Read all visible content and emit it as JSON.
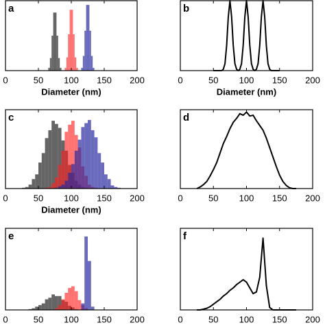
{
  "chart_data": [
    {
      "type": "histogram",
      "label": "a",
      "xlabel": "Diameter (nm)",
      "xlim": [
        0,
        200
      ],
      "xticks": [
        0,
        50,
        100,
        150,
        200
      ],
      "ylim": [
        0,
        100
      ],
      "bins": [
        60,
        62.5,
        65,
        67.5,
        70,
        72.5,
        75,
        77.5,
        80,
        82.5,
        85,
        87.5,
        90,
        92.5,
        95,
        97.5,
        100,
        102.5,
        105,
        107.5,
        110,
        112.5,
        115,
        117.5,
        120,
        122.5,
        125,
        127.5,
        130,
        132.5,
        135,
        137.5,
        140
      ],
      "series": [
        {
          "color": "#505050e0",
          "values": [
            0,
            0,
            4,
            18,
            50,
            83,
            83,
            50,
            18,
            4,
            0,
            0,
            0,
            0,
            0,
            0,
            0,
            0,
            0,
            0,
            0,
            0,
            0,
            0,
            0,
            0,
            0,
            0,
            0,
            0,
            0,
            0
          ]
        },
        {
          "color": "#ff2020a0",
          "values": [
            0,
            0,
            0,
            0,
            0,
            0,
            0,
            0,
            0,
            0,
            0,
            0,
            4,
            19,
            52,
            87,
            87,
            52,
            19,
            4,
            0,
            0,
            0,
            0,
            0,
            0,
            0,
            0,
            0,
            0,
            0,
            0
          ]
        },
        {
          "color": "#2828a0b0",
          "values": [
            0,
            0,
            0,
            0,
            0,
            0,
            0,
            0,
            0,
            0,
            0,
            0,
            0,
            0,
            0,
            0,
            0,
            0,
            0,
            0,
            0,
            0,
            4,
            21,
            57,
            94,
            94,
            57,
            21,
            4,
            0,
            0
          ]
        }
      ]
    },
    {
      "type": "line",
      "label": "b",
      "xlabel": "Diameter (nm)",
      "xlim": [
        0,
        200
      ],
      "xticks": [
        0,
        50,
        100,
        150,
        200
      ],
      "ylim": [
        0,
        100
      ],
      "x": [
        50,
        52.5,
        55,
        57.5,
        60,
        62.5,
        65,
        67.5,
        70,
        72.5,
        75,
        77.5,
        80,
        82.5,
        85,
        87.5,
        90,
        92.5,
        95,
        97.5,
        100,
        102.5,
        105,
        107.5,
        110,
        112.5,
        115,
        117.5,
        120,
        122.5,
        125,
        127.5,
        130,
        132.5,
        135,
        137.5,
        140,
        142.5,
        145,
        147.5,
        150
      ],
      "series": [
        {
          "color": "#000000",
          "values": [
            0,
            0,
            0,
            0,
            0,
            0,
            2,
            10,
            36,
            77,
            100,
            77,
            36,
            10,
            2,
            0,
            2,
            10,
            36,
            77,
            100,
            77,
            36,
            10,
            2,
            0,
            2,
            10,
            36,
            77,
            100,
            77,
            36,
            10,
            2,
            0,
            0,
            0,
            0,
            0,
            0
          ]
        }
      ]
    },
    {
      "type": "histogram",
      "label": "c",
      "xlabel": "Diameter (nm)",
      "xlim": [
        0,
        200
      ],
      "xticks": [
        0,
        50,
        100,
        150,
        200
      ],
      "ylim": [
        0,
        100
      ],
      "bins": [
        25,
        30,
        35,
        40,
        45,
        50,
        55,
        60,
        65,
        70,
        75,
        80,
        85,
        90,
        95,
        100,
        105,
        110,
        115,
        120,
        125,
        130,
        135,
        140,
        145,
        150,
        155,
        160,
        165,
        170,
        175,
        180
      ],
      "series": [
        {
          "color": "#505050e0",
          "values": [
            1,
            2,
            5,
            12,
            18,
            33,
            45,
            64,
            74,
            86,
            82,
            77,
            61,
            48,
            30,
            20,
            10,
            5,
            2,
            1,
            0,
            0,
            0,
            0,
            0,
            0,
            0,
            0,
            0,
            0,
            0
          ]
        },
        {
          "color": "#ff2020a0",
          "values": [
            0,
            0,
            0,
            0,
            0,
            0,
            0,
            1,
            2,
            7,
            14,
            30,
            48,
            72,
            81,
            86,
            68,
            52,
            28,
            16,
            5,
            2,
            1,
            0,
            0,
            0,
            0,
            0,
            0,
            0,
            0
          ]
        },
        {
          "color": "#2828a0b0",
          "values": [
            0,
            0,
            0,
            0,
            0,
            0,
            0,
            0,
            0,
            0,
            1,
            3,
            5,
            10,
            20,
            31,
            48,
            62,
            78,
            83,
            87,
            74,
            65,
            45,
            33,
            18,
            12,
            4,
            2,
            1,
            0
          ]
        }
      ]
    },
    {
      "type": "line",
      "label": "d",
      "xlim": [
        0,
        200
      ],
      "xticks": [
        0,
        50,
        100,
        150,
        200
      ],
      "ylim": [
        0,
        100
      ],
      "x": [
        25,
        30,
        35,
        40,
        45,
        50,
        55,
        60,
        65,
        70,
        75,
        80,
        85,
        90,
        95,
        100,
        105,
        110,
        115,
        120,
        125,
        130,
        135,
        140,
        145,
        150,
        155,
        160,
        165,
        170,
        175
      ],
      "series": [
        {
          "color": "#000000",
          "values": [
            0,
            2,
            5,
            9,
            16,
            24,
            33,
            45,
            57,
            66,
            76,
            84,
            89,
            95,
            93,
            97,
            92,
            93,
            86,
            80,
            74,
            64,
            52,
            40,
            28,
            17,
            9,
            4,
            1,
            0,
            0
          ]
        }
      ]
    },
    {
      "type": "histogram",
      "label": "e",
      "xlim": [
        0,
        200
      ],
      "xticks": [
        0,
        50,
        100,
        150,
        200
      ],
      "ylim": [
        0,
        100
      ],
      "bins": [
        25,
        30,
        35,
        40,
        45,
        50,
        55,
        60,
        65,
        70,
        75,
        80,
        85,
        90,
        95,
        100,
        105,
        110,
        115,
        120,
        125,
        130,
        135,
        140,
        145,
        150,
        155,
        160,
        165,
        170,
        175,
        180
      ],
      "series": [
        {
          "color": "#505050e0",
          "values": [
            0,
            0,
            1,
            2,
            4,
            6,
            8,
            13,
            15,
            19,
            17,
            17,
            12,
            10,
            5,
            3,
            1,
            0,
            0,
            0,
            0,
            0,
            0,
            0,
            0,
            0,
            0,
            0,
            0,
            0,
            0
          ]
        },
        {
          "color": "#ff2020a0",
          "values": [
            0,
            0,
            0,
            0,
            0,
            0,
            0,
            0,
            0,
            0,
            2,
            6,
            13,
            21,
            27,
            29,
            23,
            12,
            6,
            2,
            0,
            0,
            0,
            0,
            0,
            0,
            0,
            0,
            0,
            0,
            0
          ]
        },
        {
          "color": "#2828a0b0",
          "values": [
            0,
            0,
            0,
            0,
            0,
            0,
            0,
            0,
            0,
            0,
            0,
            0,
            0,
            0,
            0,
            0,
            0,
            0,
            8,
            90,
            60,
            4,
            0,
            0,
            0,
            0,
            0,
            0,
            0,
            0,
            0
          ]
        }
      ]
    },
    {
      "type": "line",
      "label": "f",
      "xlim": [
        0,
        200
      ],
      "xticks": [
        0,
        50,
        100,
        150,
        200
      ],
      "ylim": [
        0,
        100
      ],
      "x": [
        25,
        30,
        35,
        40,
        45,
        50,
        55,
        60,
        65,
        70,
        75,
        80,
        85,
        90,
        95,
        100,
        105,
        110,
        115,
        120,
        125,
        130,
        135,
        140,
        145,
        150,
        155,
        160,
        165,
        170,
        175
      ],
      "series": [
        {
          "color": "#000000",
          "values": [
            0,
            0,
            1,
            2,
            4,
            7,
            10,
            13,
            17,
            20,
            24,
            27,
            31,
            34,
            37,
            34,
            27,
            20,
            22,
            40,
            88,
            30,
            3,
            0,
            0,
            0,
            0,
            0,
            0,
            0,
            0
          ]
        }
      ]
    }
  ]
}
